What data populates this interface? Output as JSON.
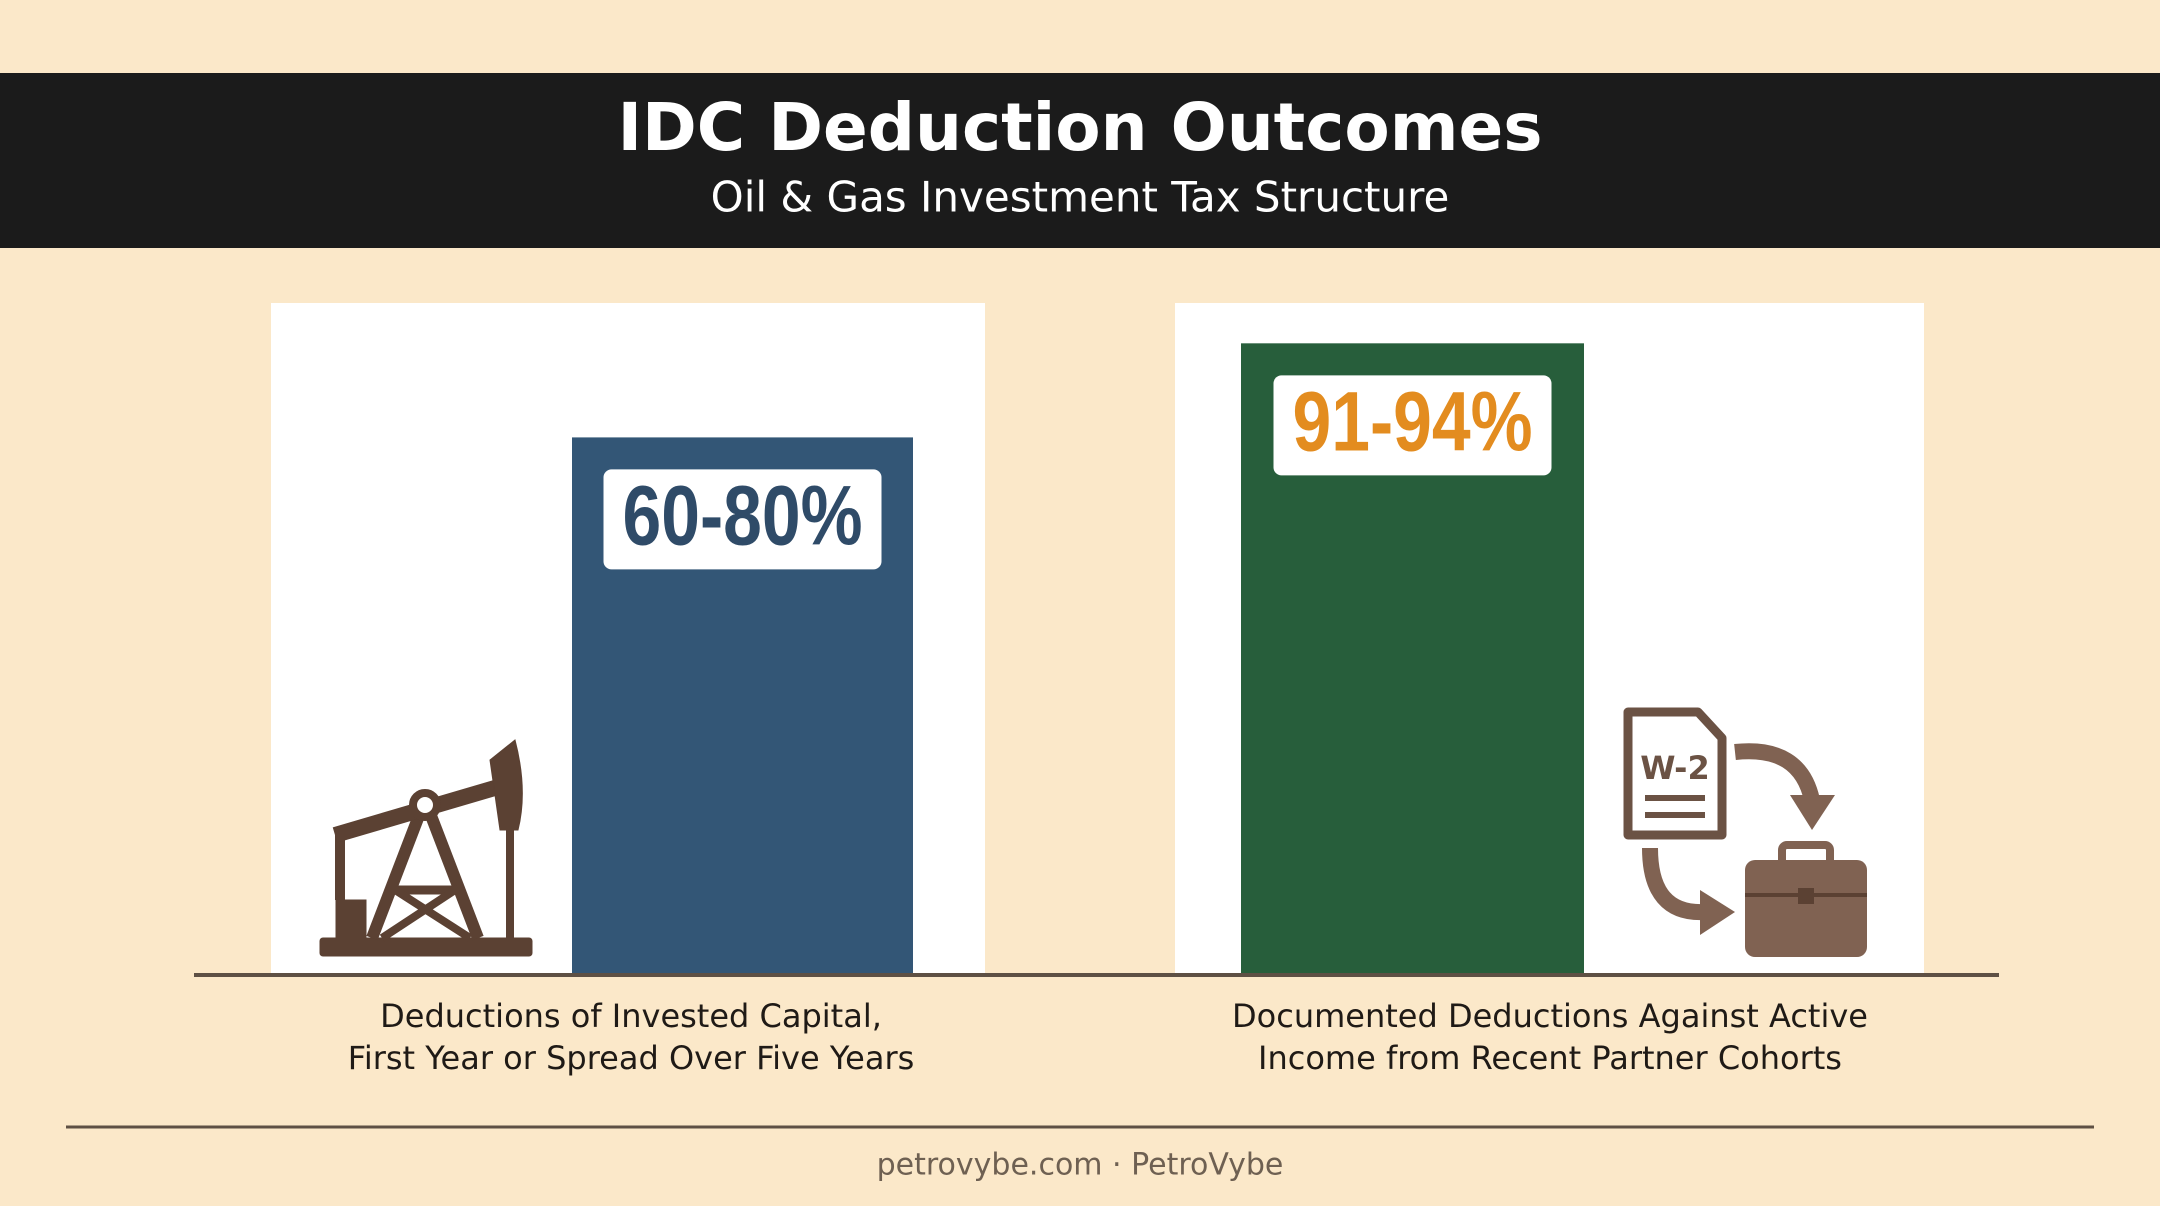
{
  "chart_data": {
    "type": "bar",
    "title": "IDC Deduction Outcomes",
    "subtitle": "Oil & Gas Investment Tax Structure",
    "categories": [
      [
        "Deductions of Invested Capital,",
        "First Year or Spread Over Five Years"
      ],
      [
        "Documented Deductions Against Active",
        "Income from Recent Partner Cohorts"
      ]
    ],
    "values": [
      80,
      94
    ],
    "value_labels": [
      "60-80%",
      "91-94%"
    ],
    "colors": [
      "#335676",
      "#275e3b"
    ],
    "label_colors": [
      "#2f4b68",
      "#e38c1f"
    ],
    "ylim": [
      0,
      100
    ],
    "annotations": [
      "W-2"
    ],
    "footer": "petrovybe.com · PetroVybe"
  }
}
